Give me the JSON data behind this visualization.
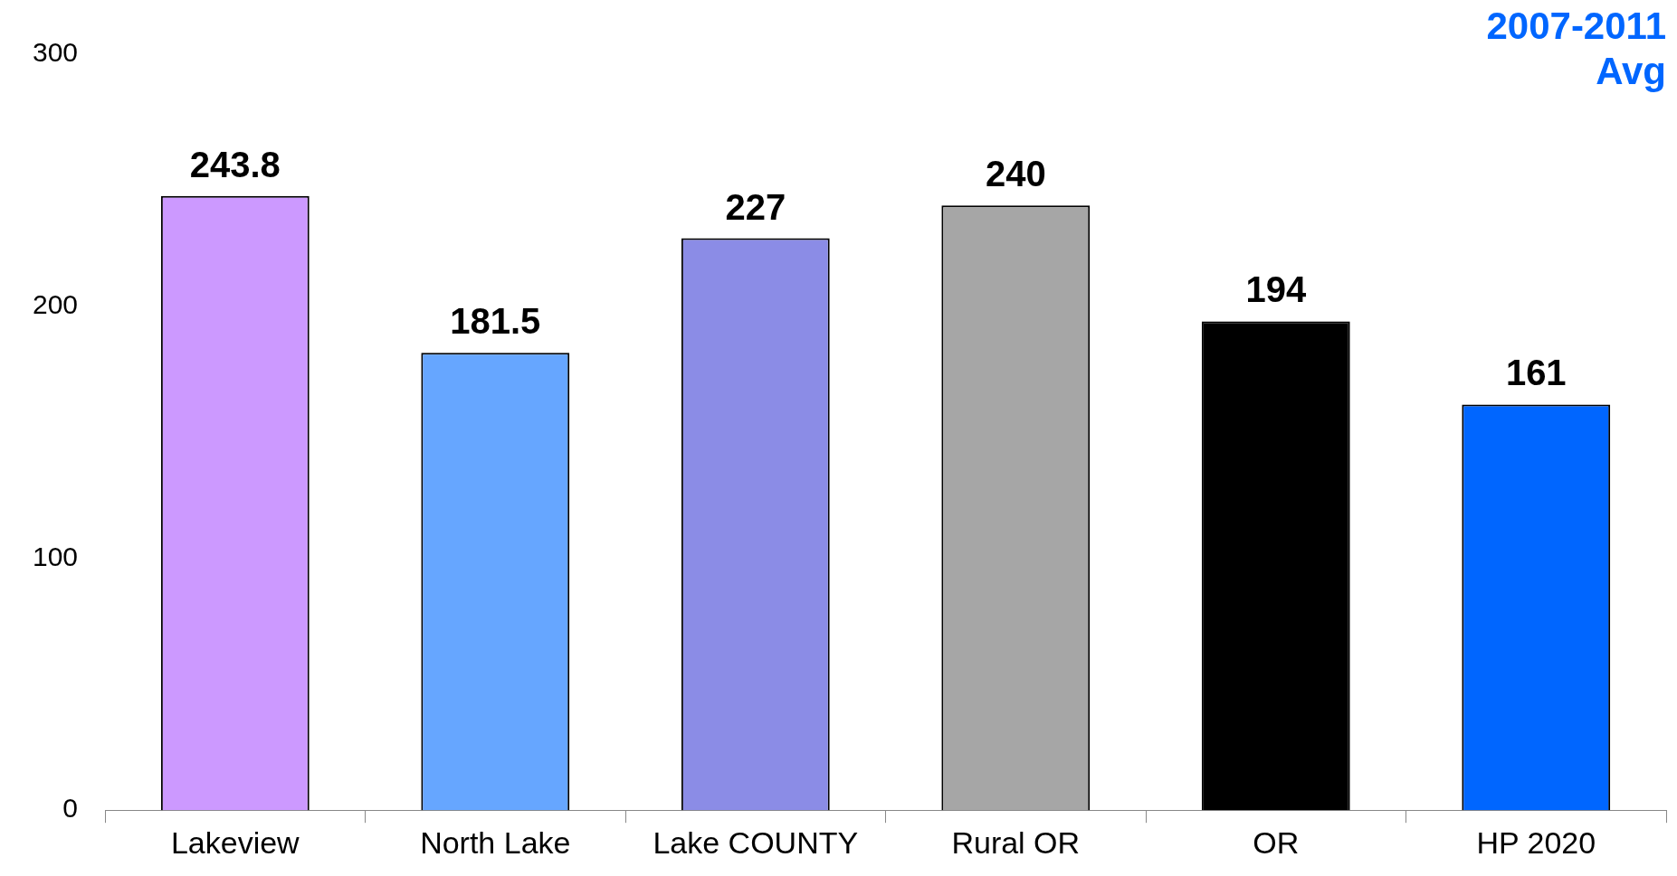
{
  "chart_data": {
    "type": "bar",
    "title": "2007-2011 Avg",
    "categories": [
      "Lakeview",
      "North Lake",
      "Lake COUNTY",
      "Rural OR",
      "OR",
      "HP 2020"
    ],
    "values": [
      243.8,
      181.5,
      227,
      240,
      194,
      161
    ],
    "colors": [
      "#cc99ff",
      "#66a6ff",
      "#8b8ce6",
      "#a6a6a6",
      "#000000",
      "#0066ff"
    ],
    "ylim": [
      0,
      300
    ],
    "yticks": [
      0,
      100,
      200,
      300
    ],
    "grid": false,
    "legend": false,
    "data_labels": true
  }
}
